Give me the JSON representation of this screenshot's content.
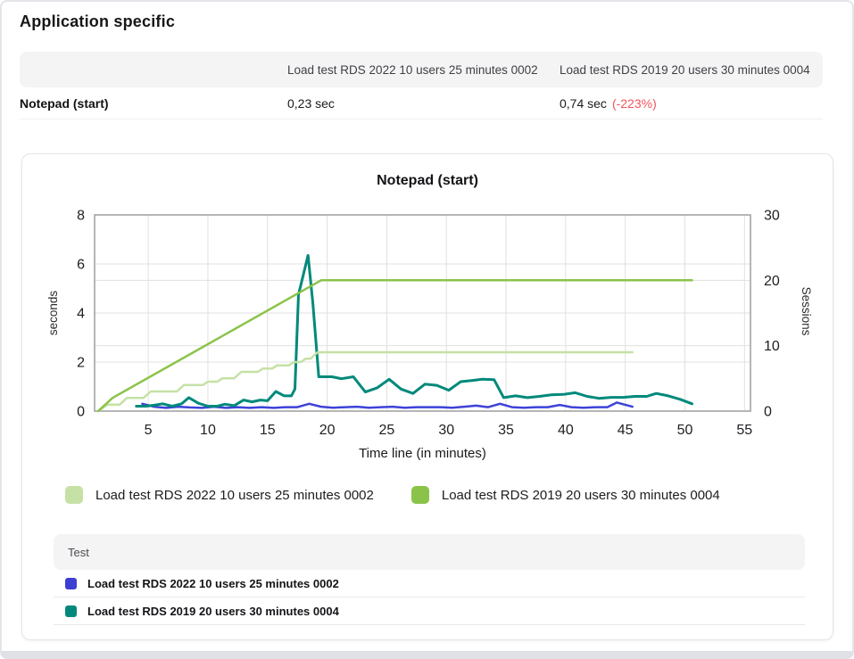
{
  "page": {
    "title": "Application specific"
  },
  "comparison_table": {
    "columns": [
      "",
      "Load test RDS 2022 10 users 25 minutes 0002",
      "Load test RDS 2019 20 users 30 minutes 0004"
    ],
    "rows": [
      {
        "metric": "Notepad (start)",
        "values": [
          "0,23 sec",
          "0,74 sec"
        ],
        "delta": "(-223%)",
        "delta_color": "#f4545c"
      }
    ]
  },
  "chart_data": {
    "type": "line",
    "title": "Notepad (start)",
    "xlabel": "Time line (in minutes)",
    "ylabel_left": "seconds",
    "ylabel_right": "Sessions",
    "xlim": [
      0.5,
      55.5
    ],
    "ylim_left": [
      0,
      8
    ],
    "ylim_right": [
      0,
      30
    ],
    "x_ticks": [
      5,
      10,
      15,
      20,
      25,
      30,
      35,
      40,
      45,
      50,
      55
    ],
    "left_ticks": [
      0,
      2,
      4,
      6,
      8
    ],
    "right_ticks": [
      0,
      10,
      20,
      30
    ],
    "grid": true,
    "legend_position": "bottom",
    "colors": {
      "grid": "#e0e0e0",
      "axis_border": "#9e9e9e",
      "tick_text": "#202124"
    },
    "series": [
      {
        "name": "Load test RDS 2022 10 users 25 minutes 0002",
        "role": "response-time-seconds",
        "axis": "left",
        "color": "#3d43d8",
        "width": 2.5,
        "points": [
          [
            4.5,
            0.3
          ],
          [
            5.5,
            0.18
          ],
          [
            6.5,
            0.13
          ],
          [
            7.5,
            0.18
          ],
          [
            8.5,
            0.15
          ],
          [
            9.5,
            0.13
          ],
          [
            10.5,
            0.18
          ],
          [
            11.5,
            0.13
          ],
          [
            12.5,
            0.16
          ],
          [
            13.5,
            0.13
          ],
          [
            14.5,
            0.16
          ],
          [
            15.5,
            0.13
          ],
          [
            16.5,
            0.16
          ],
          [
            17.5,
            0.16
          ],
          [
            18.5,
            0.3
          ],
          [
            19.5,
            0.18
          ],
          [
            20.5,
            0.14
          ],
          [
            21.5,
            0.16
          ],
          [
            22.5,
            0.18
          ],
          [
            23.5,
            0.14
          ],
          [
            24.5,
            0.16
          ],
          [
            25.5,
            0.18
          ],
          [
            26.5,
            0.14
          ],
          [
            27.5,
            0.16
          ],
          [
            28.5,
            0.16
          ],
          [
            29.5,
            0.16
          ],
          [
            30.5,
            0.14
          ],
          [
            31.5,
            0.18
          ],
          [
            32.5,
            0.22
          ],
          [
            33.5,
            0.16
          ],
          [
            34.5,
            0.3
          ],
          [
            35.5,
            0.16
          ],
          [
            36.5,
            0.14
          ],
          [
            37.5,
            0.16
          ],
          [
            38.5,
            0.16
          ],
          [
            39.5,
            0.25
          ],
          [
            40.5,
            0.16
          ],
          [
            41.5,
            0.14
          ],
          [
            42.5,
            0.16
          ],
          [
            43.5,
            0.16
          ],
          [
            44.3,
            0.35
          ],
          [
            45.6,
            0.18
          ]
        ]
      },
      {
        "name": "Load test RDS 2019 20 users 30 minutes 0004",
        "role": "response-time-seconds",
        "axis": "left",
        "color": "#00897b",
        "width": 3,
        "points": [
          [
            4,
            0.2
          ],
          [
            4.8,
            0.2
          ],
          [
            5.5,
            0.24
          ],
          [
            6.2,
            0.3
          ],
          [
            7,
            0.2
          ],
          [
            7.8,
            0.3
          ],
          [
            8.4,
            0.55
          ],
          [
            9.2,
            0.32
          ],
          [
            10,
            0.2
          ],
          [
            10.8,
            0.2
          ],
          [
            11.4,
            0.28
          ],
          [
            12.2,
            0.22
          ],
          [
            13,
            0.45
          ],
          [
            13.7,
            0.38
          ],
          [
            14.4,
            0.45
          ],
          [
            15,
            0.42
          ],
          [
            15.7,
            0.8
          ],
          [
            16.4,
            0.62
          ],
          [
            17,
            0.62
          ],
          [
            17.3,
            0.9
          ],
          [
            17.6,
            4.75
          ],
          [
            18.4,
            6.35
          ],
          [
            18.8,
            4.4
          ],
          [
            19.3,
            1.4
          ],
          [
            20.4,
            1.4
          ],
          [
            21.2,
            1.32
          ],
          [
            22.2,
            1.4
          ],
          [
            23.2,
            0.78
          ],
          [
            24.2,
            0.95
          ],
          [
            25.2,
            1.3
          ],
          [
            26.2,
            0.9
          ],
          [
            27.2,
            0.72
          ],
          [
            28.2,
            1.1
          ],
          [
            29.2,
            1.05
          ],
          [
            30.2,
            0.85
          ],
          [
            31.2,
            1.2
          ],
          [
            32.2,
            1.25
          ],
          [
            33,
            1.3
          ],
          [
            34,
            1.28
          ],
          [
            34.8,
            0.55
          ],
          [
            35.8,
            0.62
          ],
          [
            36.8,
            0.55
          ],
          [
            37.8,
            0.6
          ],
          [
            38.8,
            0.66
          ],
          [
            39.8,
            0.68
          ],
          [
            40.8,
            0.75
          ],
          [
            41.8,
            0.6
          ],
          [
            42.8,
            0.52
          ],
          [
            43.8,
            0.56
          ],
          [
            44.8,
            0.56
          ],
          [
            45.8,
            0.6
          ],
          [
            46.8,
            0.6
          ],
          [
            47.6,
            0.72
          ],
          [
            48.6,
            0.62
          ],
          [
            49.6,
            0.48
          ],
          [
            50.6,
            0.3
          ]
        ]
      },
      {
        "name": "Load test RDS 2022 10 users 25 minutes 0002",
        "role": "sessions",
        "axis": "right",
        "color": "#c5e1a5",
        "width": 2.5,
        "points": [
          [
            0.8,
            0
          ],
          [
            1.6,
            1
          ],
          [
            2.6,
            1
          ],
          [
            3.2,
            2
          ],
          [
            4.6,
            2
          ],
          [
            5.2,
            3
          ],
          [
            7.4,
            3
          ],
          [
            8,
            4
          ],
          [
            9.6,
            4
          ],
          [
            10,
            4.5
          ],
          [
            10.8,
            4.5
          ],
          [
            11.2,
            5
          ],
          [
            12.2,
            5
          ],
          [
            12.8,
            6
          ],
          [
            14.2,
            6
          ],
          [
            14.6,
            6.5
          ],
          [
            15.4,
            6.5
          ],
          [
            15.8,
            7
          ],
          [
            16.8,
            7
          ],
          [
            17.2,
            7.5
          ],
          [
            17.8,
            7.5
          ],
          [
            18.2,
            8
          ],
          [
            18.6,
            8
          ],
          [
            19.2,
            9
          ],
          [
            45.6,
            9
          ]
        ]
      },
      {
        "name": "Load test RDS 2019 20 users 30 minutes 0004",
        "role": "sessions",
        "axis": "right",
        "color": "#8bc34a",
        "width": 2.5,
        "points": [
          [
            0.8,
            0
          ],
          [
            2,
            2
          ],
          [
            19.5,
            20
          ],
          [
            50.6,
            20
          ]
        ]
      }
    ]
  },
  "chart_legend": [
    {
      "label": "Load test RDS 2022 10 users 25 minutes 0002",
      "color": "#c5e1a5"
    },
    {
      "label": "Load test RDS 2019 20 users 30 minutes 0004",
      "color": "#8bc34a"
    }
  ],
  "test_table": {
    "header": "Test",
    "rows": [
      {
        "label": "Load test RDS 2022 10 users 25 minutes 0002",
        "color": "#3d3ed2"
      },
      {
        "label": "Load test RDS 2019 20 users 30 minutes 0004",
        "color": "#00897b"
      }
    ]
  }
}
